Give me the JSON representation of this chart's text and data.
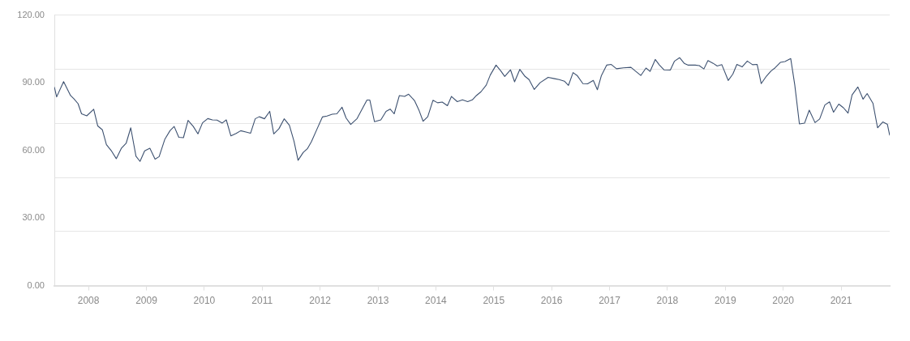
{
  "chart_data": {
    "type": "line",
    "x": [
      2007.41,
      2007.45,
      2007.57,
      2007.69,
      2007.75,
      2007.82,
      2007.88,
      2007.97,
      2008.09,
      2008.16,
      2008.24,
      2008.31,
      2008.4,
      2008.48,
      2008.57,
      2008.65,
      2008.73,
      2008.82,
      2008.89,
      2008.97,
      2009.06,
      2009.15,
      2009.22,
      2009.32,
      2009.41,
      2009.48,
      2009.56,
      2009.64,
      2009.72,
      2009.81,
      2009.89,
      2009.97,
      2010.06,
      2010.14,
      2010.22,
      2010.31,
      2010.38,
      2010.46,
      2010.55,
      2010.63,
      2010.72,
      2010.8,
      2010.88,
      2010.95,
      2011.04,
      2011.13,
      2011.2,
      2011.29,
      2011.38,
      2011.47,
      2011.55,
      2011.62,
      2011.71,
      2011.78,
      2011.85,
      2011.95,
      2012.04,
      2012.12,
      2012.21,
      2012.29,
      2012.38,
      2012.45,
      2012.53,
      2012.64,
      2012.72,
      2012.81,
      2012.86,
      2012.94,
      2013.05,
      2013.14,
      2013.21,
      2013.28,
      2013.37,
      2013.46,
      2013.53,
      2013.63,
      2013.71,
      2013.78,
      2013.86,
      2013.95,
      2014.03,
      2014.11,
      2014.2,
      2014.27,
      2014.37,
      2014.46,
      2014.55,
      2014.63,
      2014.7,
      2014.78,
      2014.87,
      2014.94,
      2015.04,
      2015.12,
      2015.19,
      2015.29,
      2015.36,
      2015.45,
      2015.54,
      2015.61,
      2015.7,
      2015.8,
      2015.94,
      2016.05,
      2016.13,
      2016.22,
      2016.29,
      2016.37,
      2016.44,
      2016.54,
      2016.62,
      2016.72,
      2016.79,
      2016.86,
      2016.95,
      2017.03,
      2017.12,
      2017.24,
      2017.37,
      2017.45,
      2017.54,
      2017.63,
      2017.7,
      2017.79,
      2017.86,
      2017.94,
      2018.05,
      2018.12,
      2018.21,
      2018.29,
      2018.36,
      2018.48,
      2018.55,
      2018.63,
      2018.7,
      2018.79,
      2018.86,
      2018.94,
      2019.05,
      2019.13,
      2019.2,
      2019.29,
      2019.38,
      2019.47,
      2019.55,
      2019.62,
      2019.71,
      2019.79,
      2019.86,
      2019.95,
      2020.03,
      2020.13,
      2020.2,
      2020.28,
      2020.37,
      2020.45,
      2020.55,
      2020.63,
      2020.72,
      2020.8,
      2020.87,
      2020.96,
      2021.04,
      2021.12,
      2021.19,
      2021.29,
      2021.38,
      2021.45,
      2021.55,
      2021.63,
      2021.72,
      2021.8,
      2021.84
    ],
    "series": [
      {
        "color": "#3d5170",
        "values": [
          88.1,
          83.7,
          90.5,
          84.3,
          82.8,
          80.7,
          76.2,
          75.3,
          78.2,
          70.8,
          69.1,
          62.5,
          59.6,
          56.3,
          61.0,
          63.1,
          70.0,
          57.4,
          55.1,
          59.8,
          60.9,
          56.1,
          57.2,
          65.0,
          68.8,
          70.6,
          65.8,
          65.6,
          73.3,
          70.6,
          67.3,
          72.2,
          74.1,
          73.5,
          73.4,
          72.1,
          73.5,
          66.4,
          67.5,
          68.7,
          68.1,
          67.6,
          74.0,
          74.9,
          74.0,
          77.3,
          67.3,
          69.6,
          74.0,
          71.1,
          64.0,
          55.6,
          59.1,
          60.7,
          63.8,
          69.6,
          74.8,
          75.2,
          76.0,
          76.2,
          79.1,
          74.3,
          71.5,
          74.1,
          78.0,
          82.3,
          82.3,
          72.7,
          73.5,
          77.3,
          78.3,
          76.2,
          84.3,
          83.9,
          84.9,
          82.1,
          77.7,
          72.9,
          74.9,
          82.2,
          81.1,
          81.4,
          79.8,
          83.9,
          81.6,
          82.4,
          81.6,
          82.4,
          84.3,
          86.0,
          88.9,
          93.4,
          97.8,
          95.3,
          92.8,
          95.7,
          90.4,
          95.9,
          92.8,
          91.4,
          87.0,
          90.0,
          92.4,
          91.8,
          91.4,
          90.7,
          88.8,
          94.5,
          93.2,
          89.6,
          89.5,
          91.0,
          86.9,
          93.2,
          97.8,
          98.1,
          96.2,
          96.6,
          96.8,
          95.1,
          93.2,
          96.5,
          95.0,
          100.3,
          97.9,
          95.7,
          95.6,
          99.5,
          101.1,
          98.6,
          97.8,
          97.8,
          97.6,
          96.1,
          99.8,
          98.6,
          97.4,
          98.0,
          91.0,
          93.8,
          98.1,
          97.0,
          99.6,
          98.0,
          98.1,
          89.6,
          92.9,
          95.2,
          96.6,
          99.0,
          99.4,
          100.7,
          89.0,
          71.7,
          72.1,
          77.8,
          72.3,
          73.9,
          80.1,
          81.5,
          76.9,
          80.5,
          78.9,
          76.5,
          84.6,
          88.1,
          82.7,
          85.2,
          80.9,
          70.0,
          72.6,
          71.5,
          66.6
        ]
      }
    ],
    "xlim": [
      2007.41,
      2021.84
    ],
    "xticks": [
      2008,
      2009,
      2010,
      2011,
      2012,
      2013,
      2014,
      2015,
      2016,
      2017,
      2018,
      2019,
      2020,
      2021
    ],
    "ylim": [
      0,
      120
    ],
    "yticks": [
      {
        "value": 0,
        "label": "0.00"
      },
      {
        "value": 24,
        "label": null
      },
      {
        "value": 30,
        "label": "30.00"
      },
      {
        "value": 48,
        "label": null
      },
      {
        "value": 60,
        "label": "60.00"
      },
      {
        "value": 72,
        "label": null
      },
      {
        "value": 90,
        "label": "90.00"
      },
      {
        "value": 96,
        "label": null
      },
      {
        "value": 120,
        "label": "120.00"
      }
    ],
    "grid": "y",
    "legend": false,
    "marker": "none",
    "line_style": "solid"
  }
}
